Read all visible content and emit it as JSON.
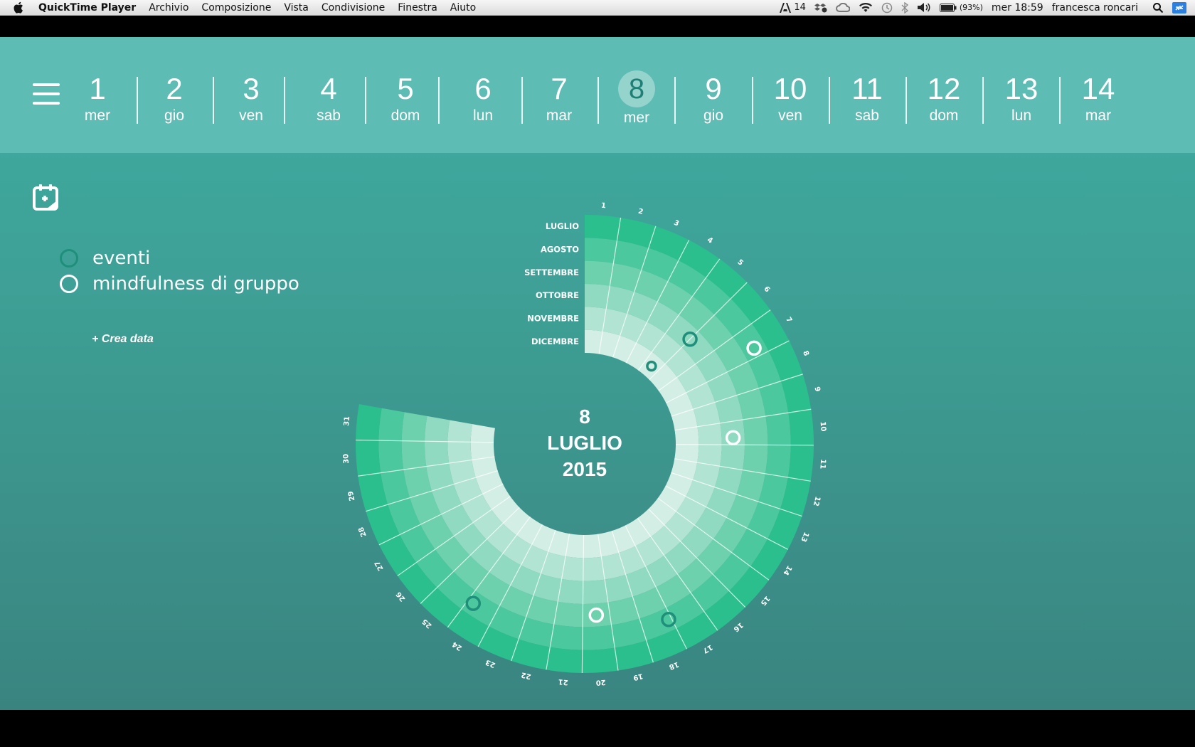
{
  "menubar": {
    "app_name": "QuickTime Player",
    "menus": [
      "Archivio",
      "Composizione",
      "Vista",
      "Condivisione",
      "Finestra",
      "Aiuto"
    ],
    "status": {
      "adobe_count": "14",
      "battery": "(93%)",
      "clock": "mer 18:59",
      "user": "francesca roncari"
    }
  },
  "datebar": {
    "days": [
      {
        "num": "1",
        "wd": "mer"
      },
      {
        "num": "2",
        "wd": "gio"
      },
      {
        "num": "3",
        "wd": "ven"
      },
      {
        "num": "4",
        "wd": "sab"
      },
      {
        "num": "5",
        "wd": "dom"
      },
      {
        "num": "6",
        "wd": "lun"
      },
      {
        "num": "7",
        "wd": "mar"
      },
      {
        "num": "8",
        "wd": "mer"
      },
      {
        "num": "9",
        "wd": "gio"
      },
      {
        "num": "10",
        "wd": "ven"
      },
      {
        "num": "11",
        "wd": "sab"
      },
      {
        "num": "12",
        "wd": "dom"
      },
      {
        "num": "13",
        "wd": "lun"
      },
      {
        "num": "14",
        "wd": "mar"
      }
    ],
    "selected": "8"
  },
  "legend": {
    "events_label": "eventi",
    "mindfulness_label": "mindfulness di gruppo",
    "create_label": "+ Crea data",
    "events_color": "#1f8f7c",
    "mindfulness_color": "#ffffff"
  },
  "calendar": {
    "months": [
      "LUGLIO",
      "AGOSTO",
      "SETTEMBRE",
      "OTTOBRE",
      "NOVEMBRE",
      "DICEMBRE"
    ],
    "days_in_ring": 31,
    "center": {
      "day": "8",
      "month": "LUGLIO",
      "year": "2015"
    },
    "ring_colors": [
      "#2bbf8e",
      "#4cc89e",
      "#6dd1ae",
      "#8fdac0",
      "#b1e4d2",
      "#d3eee5"
    ],
    "markers": [
      {
        "type": "eventi",
        "month_index": 3,
        "day": 5.5
      },
      {
        "type": "mindfulness",
        "month_index": 1,
        "day": 7.2
      },
      {
        "type": "eventi",
        "month_index": 5,
        "day": 5.0
      },
      {
        "type": "mindfulness",
        "month_index": 3,
        "day": 10.2
      },
      {
        "type": "eventi",
        "month_index": 1,
        "day": 24.3
      },
      {
        "type": "mindfulness",
        "month_index": 2,
        "day": 20.0
      },
      {
        "type": "eventi",
        "month_index": 1,
        "day": 17.6
      }
    ]
  }
}
